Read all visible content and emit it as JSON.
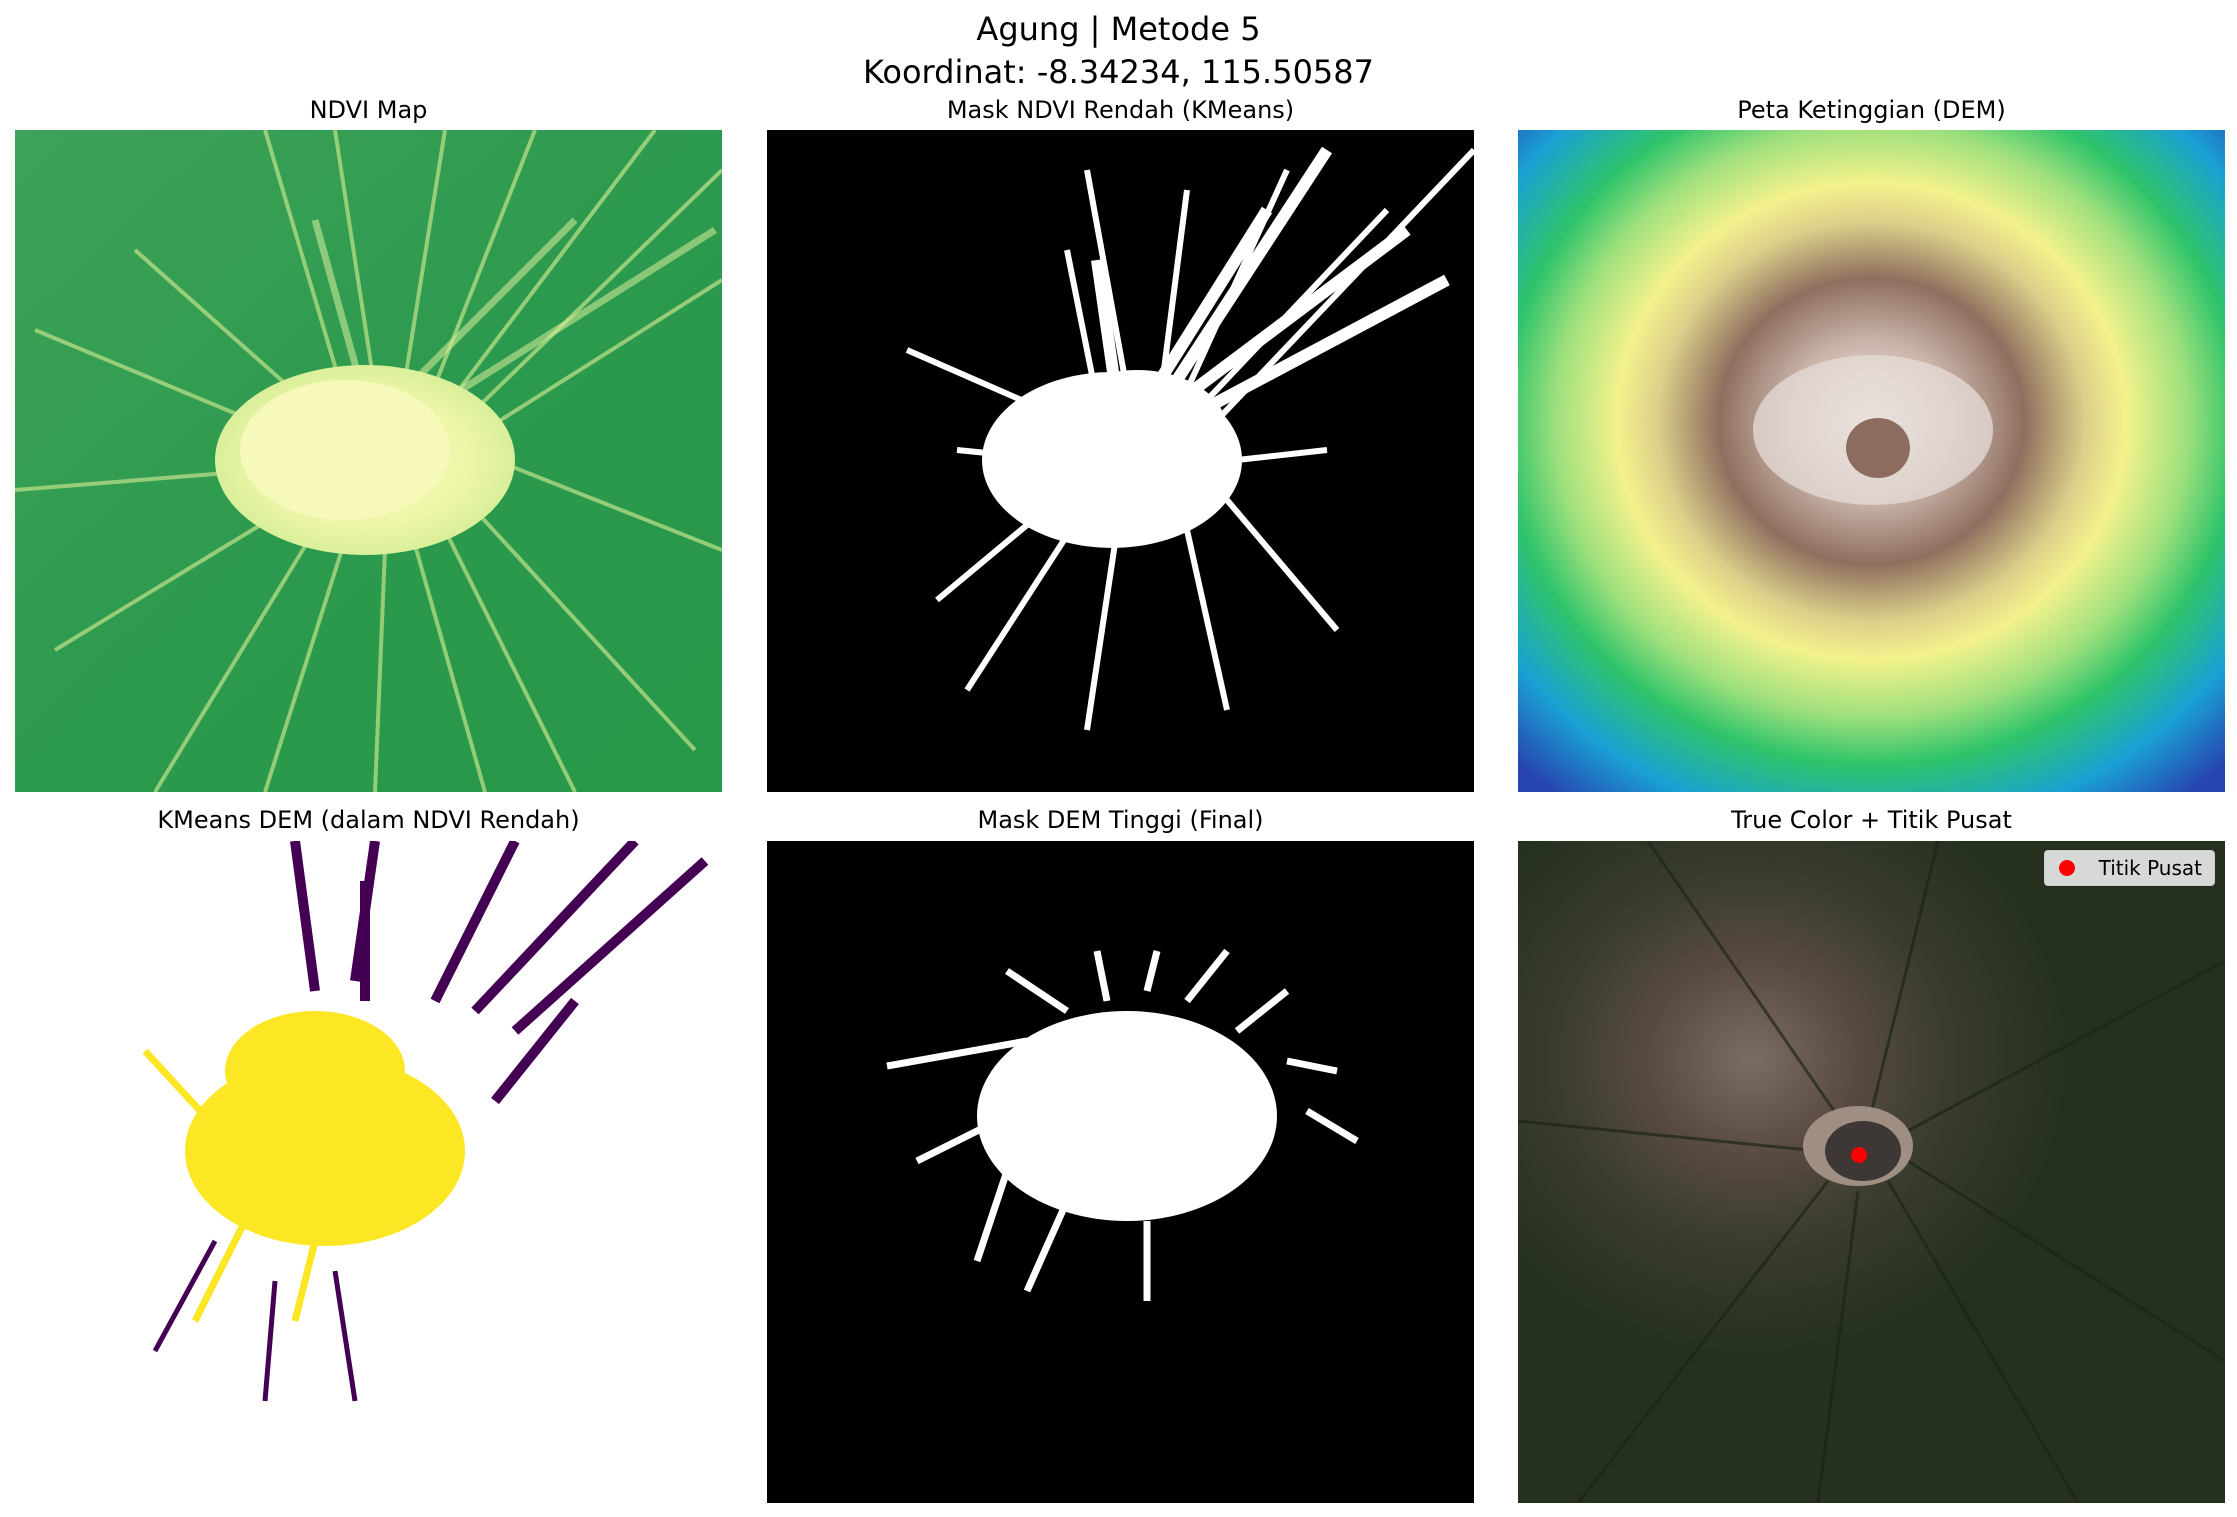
{
  "figure": {
    "title_line1": "Agung | Metode 5",
    "title_line2": "Koordinat: -8.34234, 115.50587"
  },
  "panels": [
    {
      "title": "NDVI Map",
      "colormap": "summer"
    },
    {
      "title": "Mask NDVI Rendah (KMeans)",
      "colormap": "gray"
    },
    {
      "title": "Peta Ketinggian (DEM)",
      "colormap": "terrain"
    },
    {
      "title": "KMeans DEM (dalam NDVI Rendah)",
      "colormap": "viridis"
    },
    {
      "title": "Mask DEM Tinggi (Final)",
      "colormap": "gray"
    },
    {
      "title": "True Color + Titik Pusat",
      "colormap": "rgb"
    }
  ],
  "legend": {
    "label": "Titik Pusat",
    "marker_color": "#ff0000"
  },
  "colors": {
    "ndvi_green": "#2e9a4e",
    "ndvi_light": "#f5f7b0",
    "viridis_purple": "#440154",
    "viridis_yellow": "#fde725",
    "marker_red": "#ff0000"
  }
}
